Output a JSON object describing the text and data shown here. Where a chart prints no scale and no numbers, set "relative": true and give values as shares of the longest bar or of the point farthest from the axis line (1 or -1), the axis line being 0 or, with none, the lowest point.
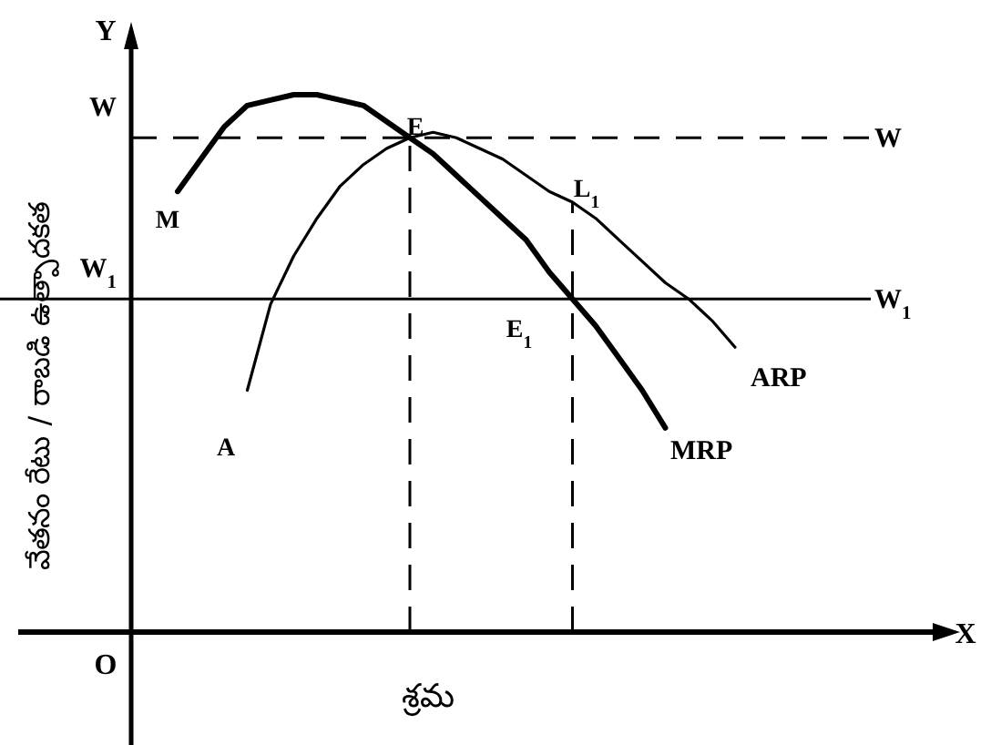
{
  "chart_data": {
    "type": "line",
    "relative": true,
    "xlabel": "శ్రమ",
    "ylabel": "వేతనం రేటు / రాబడి ఉత్పాదకత",
    "categories": [
      null,
      null,
      null,
      null,
      null,
      null,
      null,
      null,
      null,
      null,
      null,
      null,
      null,
      null,
      null,
      null,
      null,
      null,
      null,
      null,
      null,
      null,
      null,
      null,
      null,
      null,
      null,
      null,
      null,
      null,
      null,
      null,
      null,
      null,
      null,
      null
    ],
    "series": [
      {
        "name": "MRP",
        "color": "#000000",
        "values": [
          null,
          null,
          0.82,
          0.88,
          0.94,
          0.98,
          0.99,
          1,
          1,
          0.99,
          0.98,
          0.95,
          0.92,
          0.89,
          0.85,
          0.81,
          0.77,
          0.73,
          0.67,
          0.62,
          0.57,
          0.51,
          0.45,
          0.38,
          null,
          null,
          null,
          null,
          null,
          null,
          null,
          null,
          null,
          null,
          null,
          null
        ]
      },
      {
        "name": "ARP",
        "color": "#000000",
        "values": [
          null,
          null,
          null,
          null,
          null,
          0.45,
          0.61,
          0.7,
          0.77,
          0.83,
          0.87,
          0.9,
          0.92,
          0.93,
          0.92,
          0.9,
          0.88,
          0.85,
          0.82,
          0.8,
          0.77,
          0.73,
          0.69,
          0.65,
          0.62,
          0.58,
          0.53,
          null,
          null,
          null,
          null,
          null,
          null,
          null,
          null,
          null
        ]
      }
    ],
    "ref_lines": [
      {
        "axis": "y",
        "value": 0.92,
        "label": "W",
        "line_style": "dashed",
        "color": "#000000"
      },
      {
        "axis": "y",
        "value": 0.62,
        "label": "W$_{1}$",
        "line_style": "solid",
        "color": "#000000"
      }
    ],
    "annotations": [
      "Y",
      "X",
      "O",
      "M",
      "A",
      "E",
      "E$_{1}$",
      "L$_{1}$"
    ],
    "line_style": "solid"
  }
}
